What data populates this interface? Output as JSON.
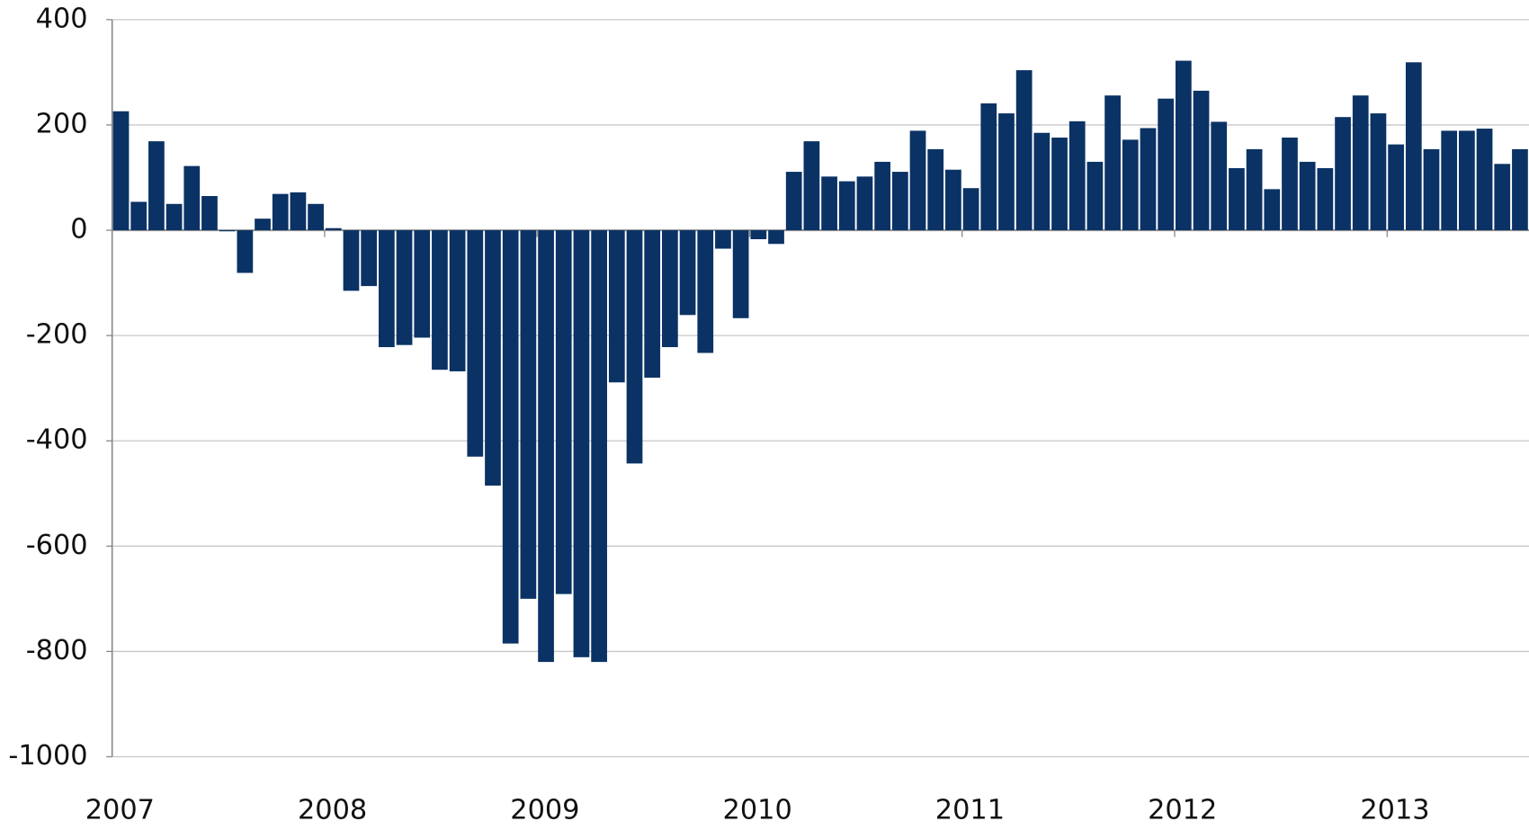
{
  "chart_data": {
    "type": "bar",
    "categories": [
      "2007",
      null,
      null,
      null,
      null,
      null,
      null,
      null,
      null,
      null,
      null,
      null,
      "2008",
      null,
      null,
      null,
      null,
      null,
      null,
      null,
      null,
      null,
      null,
      null,
      "2009",
      null,
      null,
      null,
      null,
      null,
      null,
      null,
      null,
      null,
      null,
      null,
      "2010",
      null,
      null,
      null,
      null,
      null,
      null,
      null,
      null,
      null,
      null,
      null,
      "2011",
      null,
      null,
      null,
      null,
      null,
      null,
      null,
      null,
      null,
      null,
      null,
      "2012",
      null,
      null,
      null,
      null,
      null,
      null,
      null,
      null,
      null,
      null,
      null,
      "2013",
      null,
      null,
      null,
      null,
      null,
      null,
      null
    ],
    "values": [
      226,
      54,
      169,
      50,
      122,
      65,
      -2,
      -81,
      22,
      69,
      72,
      50,
      4,
      -115,
      -106,
      -222,
      -218,
      -204,
      -265,
      -268,
      -430,
      -485,
      -785,
      -700,
      -820,
      -691,
      -811,
      -820,
      -289,
      -443,
      -280,
      -222,
      -161,
      -233,
      -35,
      -167,
      -17,
      -26,
      111,
      169,
      102,
      93,
      102,
      130,
      111,
      189,
      154,
      115,
      80,
      241,
      222,
      304,
      185,
      176,
      207,
      130,
      256,
      172,
      194,
      250,
      322,
      265,
      206,
      118,
      154,
      78,
      176,
      130,
      118,
      215,
      256,
      222,
      163,
      319,
      154,
      189,
      189,
      193,
      126,
      154
    ],
    "color": "#0a3264",
    "ylim": [
      -1000,
      400
    ],
    "yticks": [
      -1000,
      -800,
      -600,
      -400,
      -200,
      0,
      200,
      400
    ],
    "grid": true
  }
}
